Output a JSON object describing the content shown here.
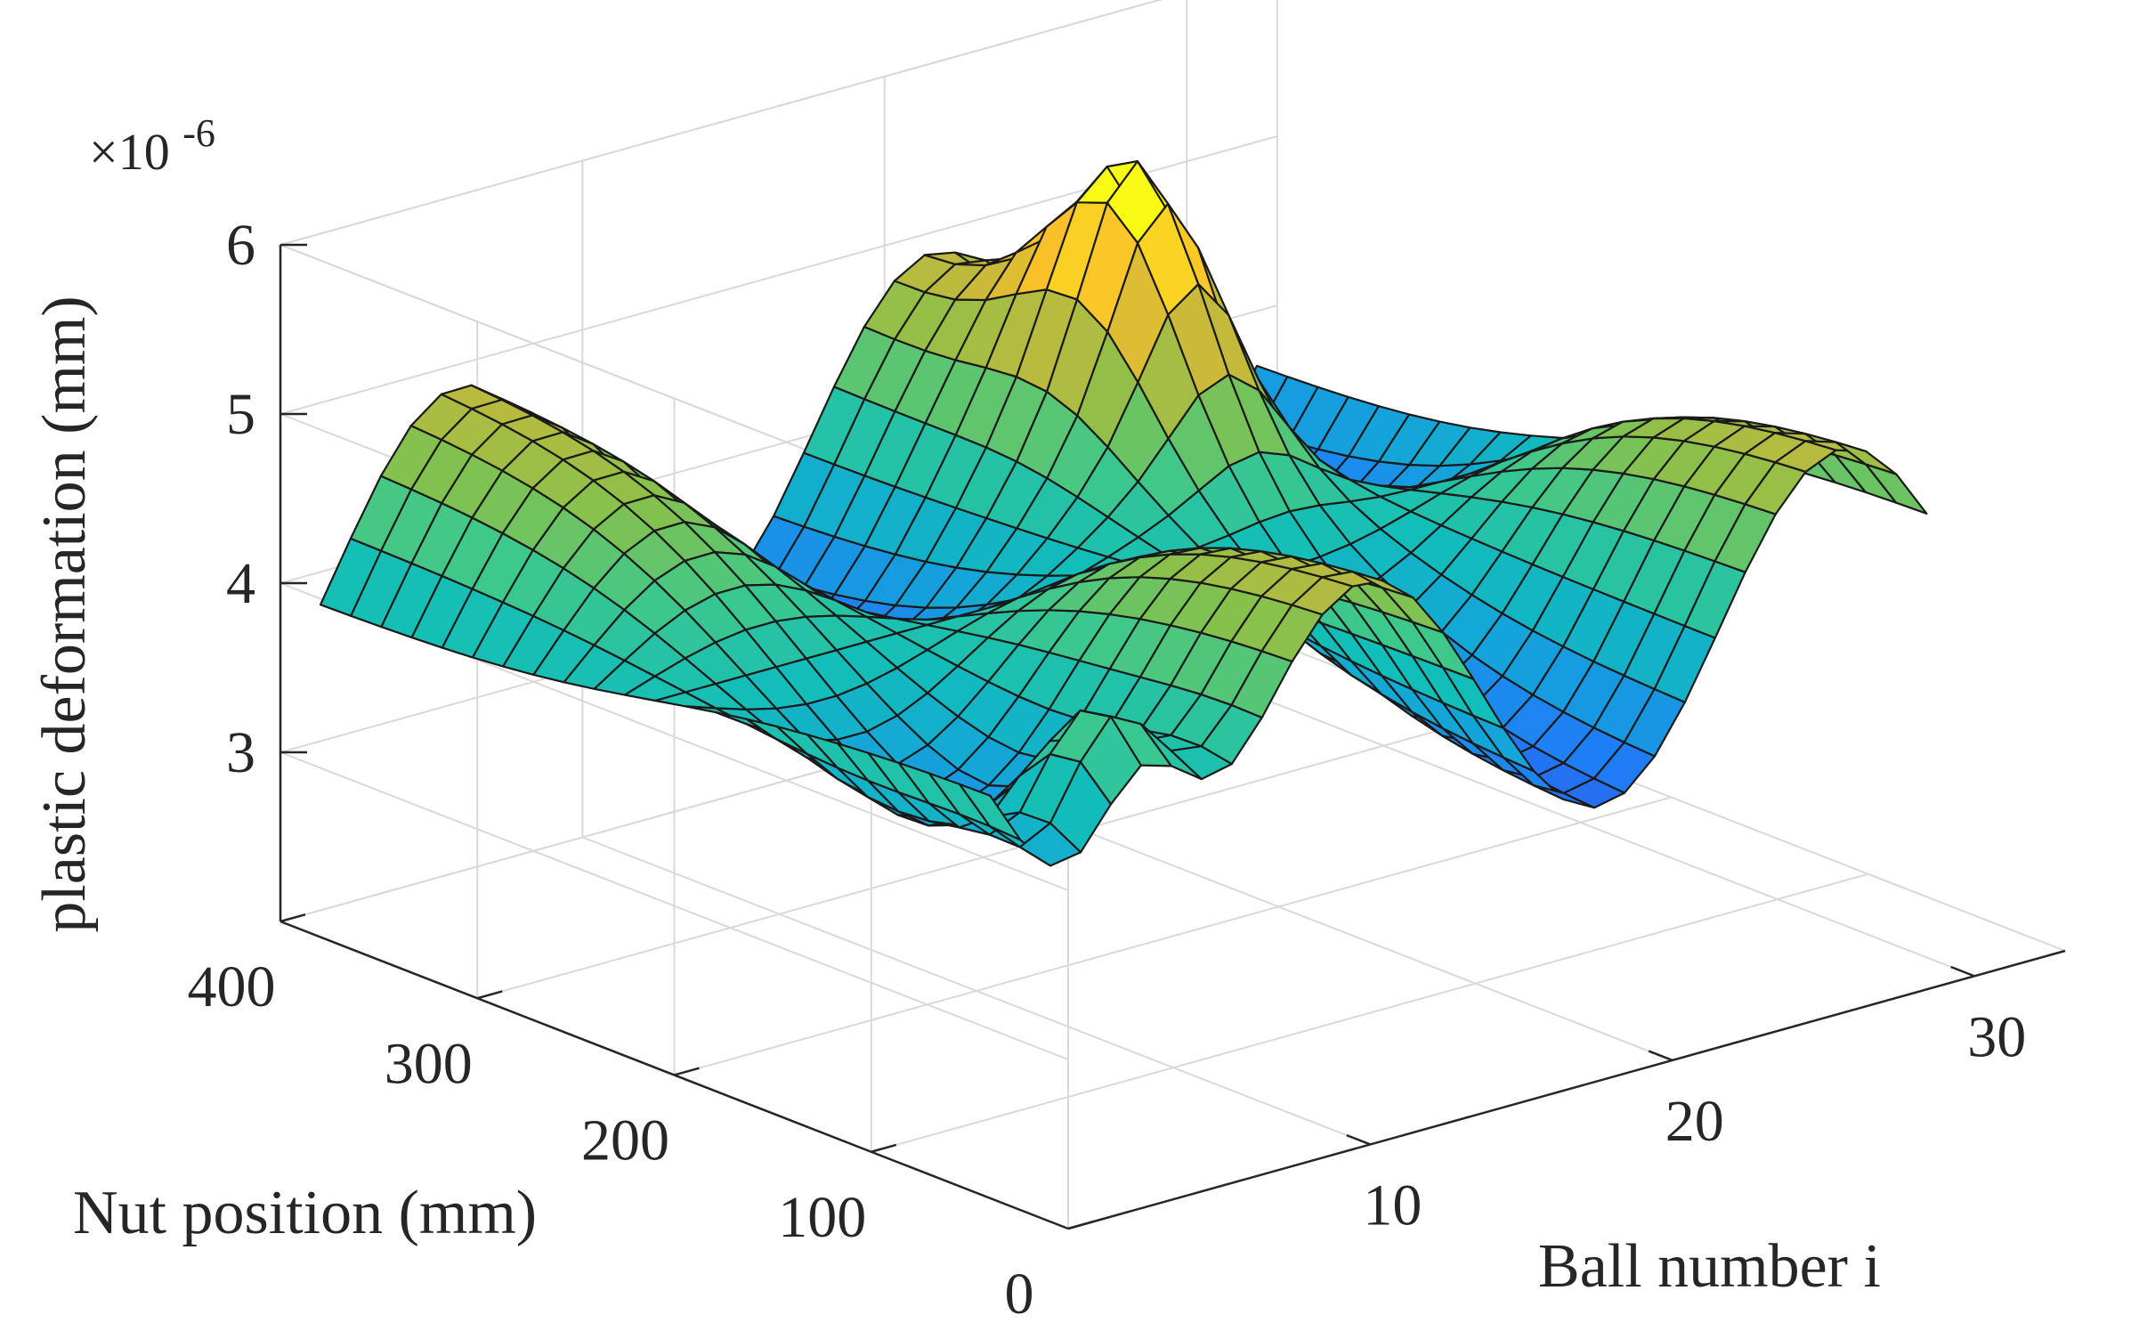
{
  "chart_data": {
    "type": "surface",
    "title": "",
    "xlabel": "Ball number i",
    "ylabel": "Nut position (mm)",
    "zlabel": "plastic deformation (mm)",
    "z_exponent_label": {
      "base": "×10",
      "exponent": "-6"
    },
    "xlim": [
      0,
      33
    ],
    "ylim": [
      0,
      400
    ],
    "zlim": [
      2,
      6
    ],
    "xticks": [
      10,
      20,
      30
    ],
    "xtick_labels": [
      "10",
      "20",
      "30"
    ],
    "yticks": [
      0,
      100,
      200,
      300,
      400
    ],
    "ytick_labels": [
      "0",
      "100",
      "200",
      "300",
      "400"
    ],
    "zticks": [
      3,
      4,
      5,
      6
    ],
    "ztick_labels": [
      "3",
      "4",
      "5",
      "6"
    ],
    "grid": true,
    "colormap": [
      "#3e26a8",
      "#2f55e8",
      "#1e7ff5",
      "#14a5d9",
      "#12beb9",
      "#3fc88a",
      "#86c14c",
      "#c8b93a",
      "#fbc02a",
      "#f9fb15"
    ],
    "mesh": {
      "ball_range": [
        1,
        32
      ],
      "ball_steps": 31,
      "nut_range": [
        55,
        395
      ],
      "nut_steps": 22,
      "model": "plastic_deformation(ball, nut) x 1e-6 mm",
      "base": 4.05,
      "ball_wave": {
        "amplitude": 0.9,
        "period": 15.7,
        "center": 17.3
      },
      "nut_ramp": {
        "pivot": 225,
        "scale": 90
      },
      "end_bumps": [
        {
          "ball": 6,
          "nut": 75,
          "height": 1.2,
          "width_ball": 2.2,
          "width_nut": 45
        },
        {
          "ball": 22,
          "nut": 300,
          "height": 1.2,
          "width_ball": 2.2,
          "width_nut": 45
        }
      ]
    }
  }
}
